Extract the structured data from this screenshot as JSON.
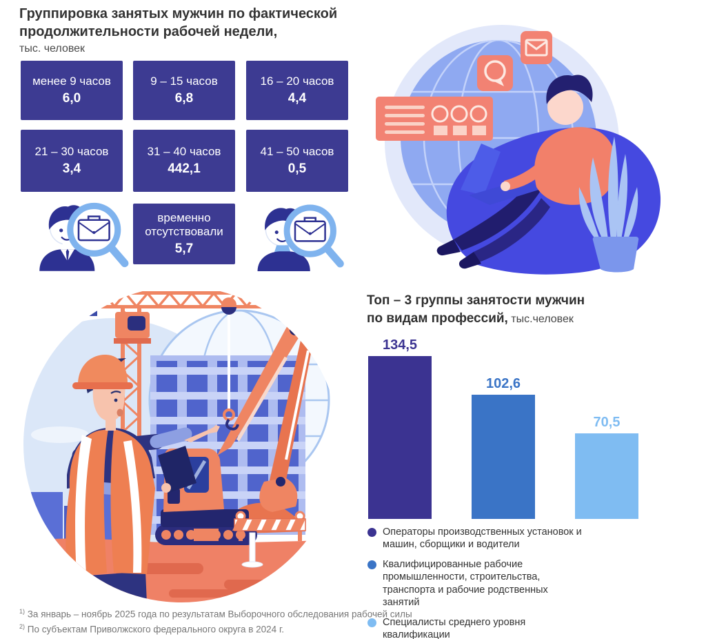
{
  "grouping": {
    "title_line1": "Группировка занятых мужчин по фактической",
    "title_line2": "продолжительности рабочей недели,",
    "unit": "тыс. человек",
    "box_color": "#3d3b92",
    "boxes": [
      {
        "label": "менее 9 часов",
        "value": "6,0"
      },
      {
        "label": "9 – 15 часов",
        "value": "6,8"
      },
      {
        "label": "16 – 20 часов",
        "value": "4,4"
      },
      {
        "label": "21 – 30 часов",
        "value": "3,4"
      },
      {
        "label": "31 – 40 часов",
        "value": "442,1"
      },
      {
        "label": "41 – 50 часов",
        "value": "0,5"
      }
    ],
    "absent": {
      "label": "временно отсутствовали",
      "value": "5,7"
    }
  },
  "top3": {
    "title_line1": "Топ – 3 группы занятости мужчин",
    "title_line2_bold": "по видам профессий,",
    "title_line2_unit": " тыс.человек"
  },
  "chart_data": [
    {
      "type": "table",
      "title": "Группировка занятых мужчин по фактической продолжительности рабочей недели",
      "unit": "тыс. человек",
      "categories": [
        "менее 9 часов",
        "9 – 15 часов",
        "16 – 20 часов",
        "21 – 30 часов",
        "31 – 40 часов",
        "41 – 50 часов",
        "временно отсутствовали"
      ],
      "values": [
        6.0,
        6.8,
        4.4,
        3.4,
        442.1,
        0.5,
        5.7
      ]
    },
    {
      "type": "bar",
      "title": "Топ – 3 группы занятости мужчин по видам профессий",
      "unit": "тыс.человек",
      "categories": [
        "Операторы производственных установок и машин, сборщики и водители",
        "Квалифицированные рабочие промышленности, строительства, транспорта и рабочие родственных занятий",
        "Специалисты среднего уровня квалификации"
      ],
      "values": [
        134.5,
        102.6,
        70.5
      ],
      "value_labels": [
        "134,5",
        "102,6",
        "70,5"
      ],
      "colors": [
        "#3b3391",
        "#3a74c6",
        "#7fbcf2"
      ],
      "ylim": [
        0,
        140
      ],
      "grid": false,
      "legend_position": "bottom"
    }
  ],
  "footnotes": [
    {
      "sup": "1)",
      "text": "За январь – ноябрь 2025 года по результатам Выборочного обследования рабочей силы"
    },
    {
      "sup": "2)",
      "text": "По субъектам Приволжского федерального округа в 2024 г."
    }
  ]
}
